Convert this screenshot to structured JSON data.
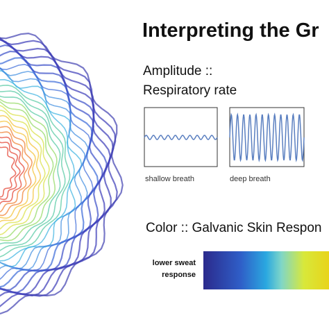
{
  "title": "Interpreting the Gr",
  "amplitude": {
    "heading1": "Amplitude ::",
    "heading2": "Respiratory rate",
    "examples": [
      "shallow breath",
      "deep breath"
    ]
  },
  "color": {
    "heading": "Color :: Galvanic Skin Respon",
    "low_label": [
      "lower sweat",
      "response"
    ]
  }
}
